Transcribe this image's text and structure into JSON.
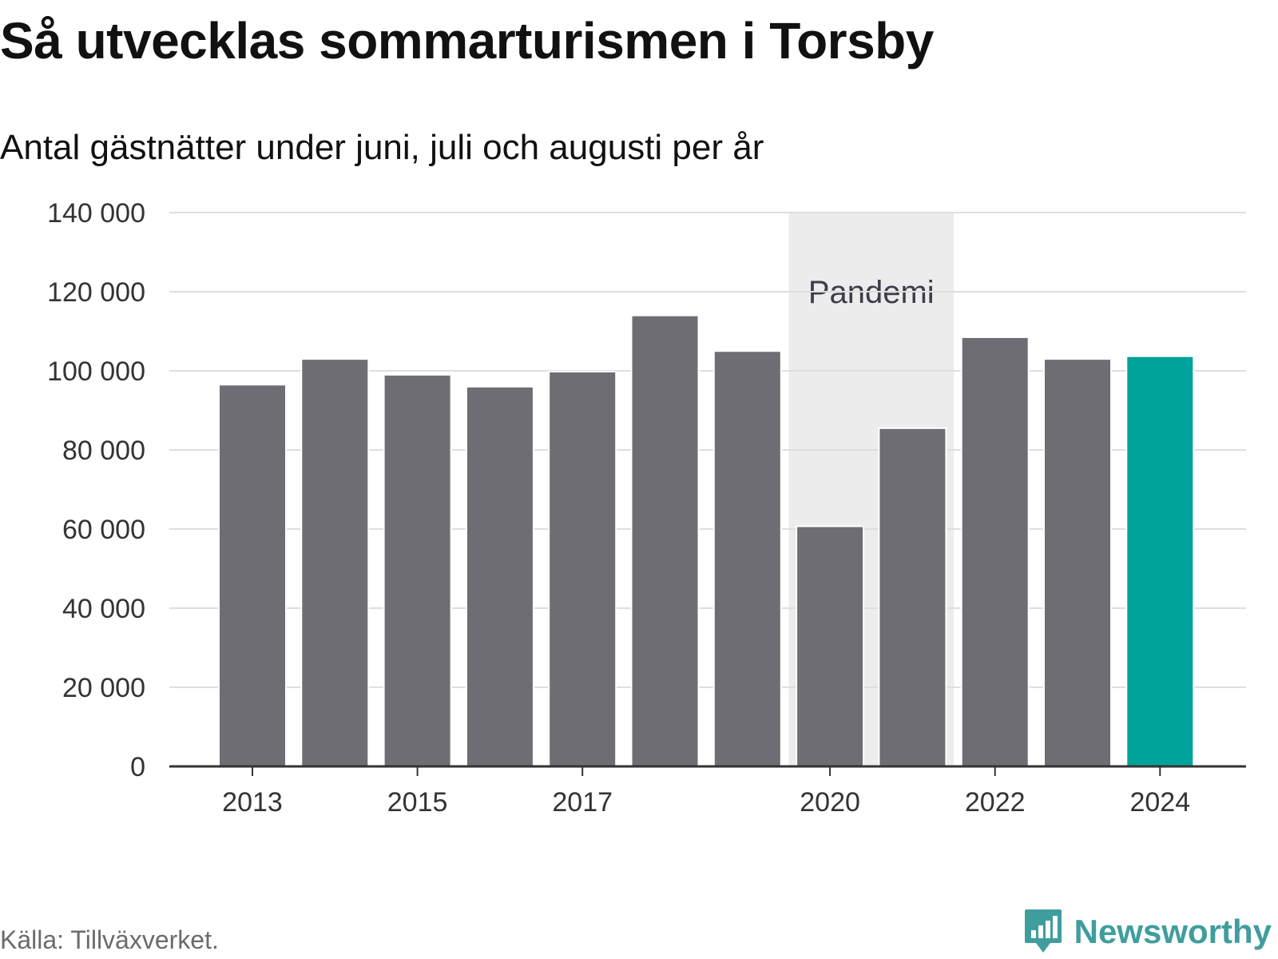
{
  "chart_data": {
    "type": "bar",
    "title": "Så utvecklas sommarturismen i Torsby",
    "subtitle": "Antal gästnätter under juni, juli och augusti per år",
    "categories": [
      "2013",
      "2014",
      "2015",
      "2016",
      "2017",
      "2018",
      "2019",
      "2020",
      "2021",
      "2022",
      "2023",
      "2024"
    ],
    "values": [
      96500,
      103000,
      99000,
      96000,
      99800,
      114000,
      105000,
      60700,
      85500,
      108500,
      103000,
      103700
    ],
    "x_tick_labels": [
      "2013",
      "2015",
      "2017",
      "2020",
      "2022",
      "2024"
    ],
    "y_ticks": [
      0,
      20000,
      40000,
      60000,
      80000,
      100000,
      120000,
      140000
    ],
    "y_tick_labels": [
      "0",
      "20 000",
      "40 000",
      "60 000",
      "80 000",
      "100 000",
      "120 000",
      "140 000"
    ],
    "ylim": [
      0,
      140000
    ],
    "xlabel": "",
    "ylabel": "",
    "grid": true,
    "highlight": {
      "category": "2024",
      "color": "#00a39a"
    },
    "bar_color": "#6e6d73",
    "annotation": {
      "label": "Pandemi",
      "from": "2020",
      "to": "2021",
      "color": "#ececec"
    }
  },
  "source": "Källa: Tillväxverket.",
  "brand": {
    "name": "Newsworthy",
    "icon": "newsworthy-logo-icon",
    "color": "#3f9e9d"
  }
}
